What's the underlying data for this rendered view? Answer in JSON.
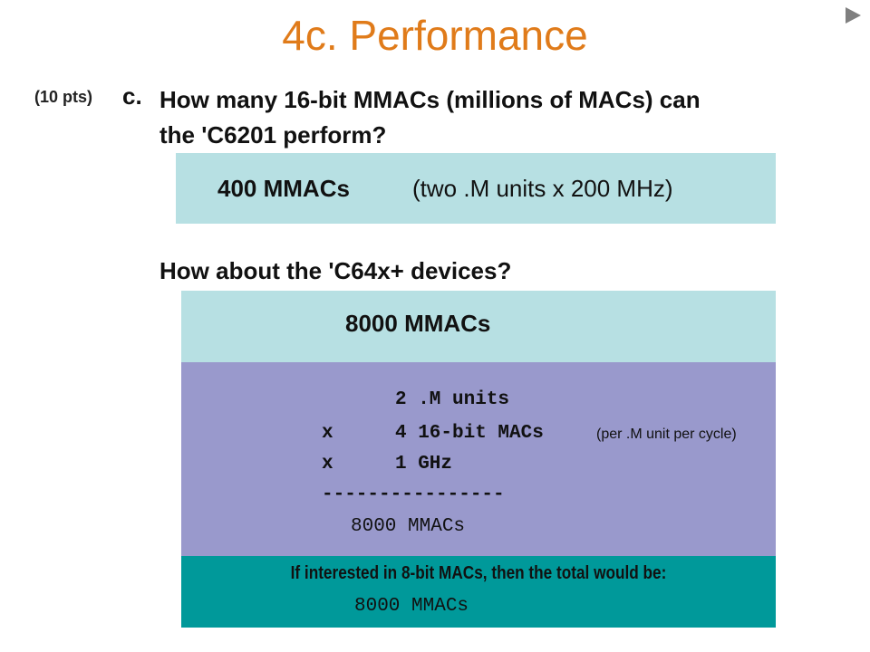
{
  "slide": {
    "title": "4c. Performance",
    "next_icon": "play-triangle-icon"
  },
  "question": {
    "points": "(10 pts)",
    "letter": "c.",
    "line1": "How many 16-bit MMACs (millions of MACs) can",
    "line2": "the 'C6201 perform?"
  },
  "answer1": {
    "value": "400 MMACs",
    "note": "(two .M units x 200 MHz)"
  },
  "question2": "How about the 'C64x+ devices?",
  "answer2": {
    "value": "8000 MMACs"
  },
  "calc": {
    "row1": "2 .M units",
    "row2_op": "x",
    "row2": "4 16-bit MACs",
    "row2_note": "(per .M unit per cycle)",
    "row3_op": "x",
    "row3": "1 GHz",
    "divider": "----------------",
    "result": "8000 MMACs"
  },
  "extra": {
    "text": "If interested in 8-bit MACs, then the total would be:",
    "value": "8000 MMACs"
  },
  "colors": {
    "title": "#e07b1a",
    "light_box": "#b7e0e3",
    "calc_box": "#9999cc",
    "teal_box": "#00999a"
  }
}
